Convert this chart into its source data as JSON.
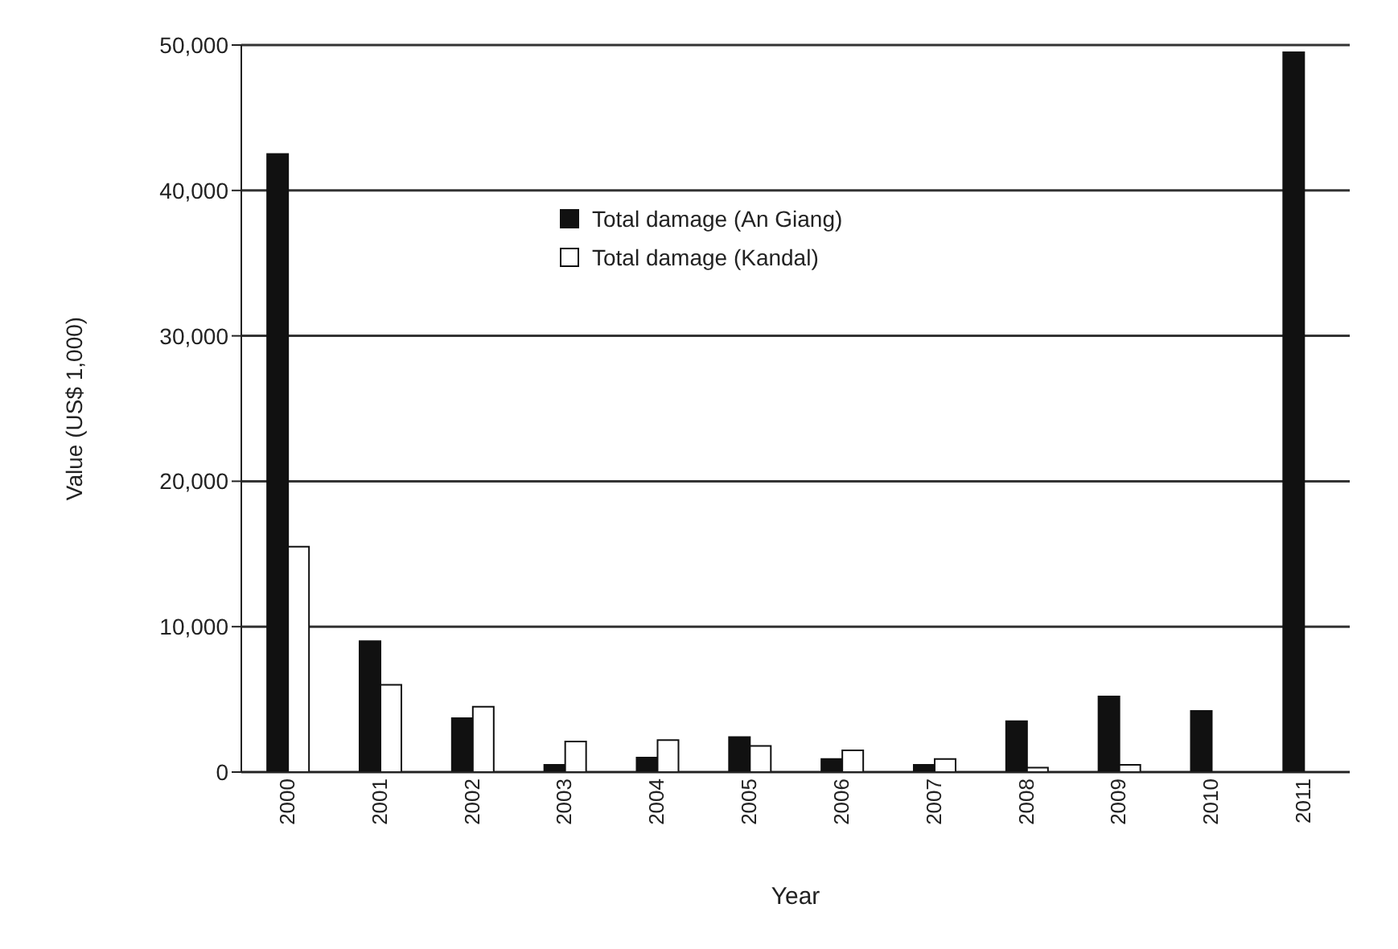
{
  "chart_data": {
    "type": "bar",
    "xlabel": "Year",
    "ylabel": "Value (US$ 1,000)",
    "categories": [
      "2000",
      "2001",
      "2002",
      "2003",
      "2004",
      "2005",
      "2006",
      "2007",
      "2008",
      "2009",
      "2010",
      "2011"
    ],
    "series": [
      {
        "name": "Total damage (An Giang)",
        "color": "#111111",
        "values": [
          42500,
          9000,
          3700,
          500,
          1000,
          2400,
          900,
          500,
          3500,
          5200,
          4200,
          49500
        ]
      },
      {
        "name": "Total damage (Kandal)",
        "color": "#ffffff",
        "values": [
          15500,
          6000,
          4500,
          2100,
          2200,
          1800,
          1500,
          900,
          300,
          500,
          null,
          null
        ]
      }
    ],
    "ylim": [
      0,
      50000
    ],
    "yticks": [
      0,
      {
        "value": 10000,
        "label": "10,000"
      },
      {
        "value": 20000,
        "label": "20,000"
      },
      {
        "value": 30000,
        "label": "30,000"
      },
      {
        "value": 40000,
        "label": "40,000"
      },
      {
        "value": 50000,
        "label": "50,000"
      }
    ],
    "grid": "y",
    "legend": "top"
  }
}
